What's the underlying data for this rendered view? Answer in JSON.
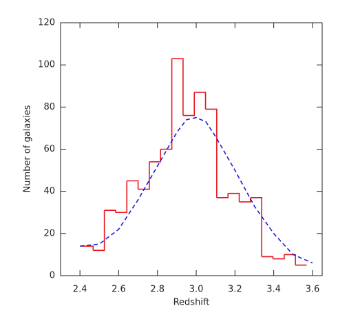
{
  "chart_data": {
    "type": "histogram",
    "xlabel": "Redshift",
    "ylabel": "Number of galaxies",
    "bins": [
      2.41,
      2.468,
      2.526,
      2.584,
      2.642,
      2.7,
      2.758,
      2.816,
      2.874,
      2.932,
      2.99,
      3.048,
      3.106,
      3.164,
      3.222,
      3.28,
      3.338,
      3.396,
      3.454,
      3.512,
      3.57
    ],
    "counts": [
      14,
      12,
      31,
      30,
      45,
      41,
      54,
      60,
      103,
      76,
      87,
      79,
      37,
      39,
      35,
      37,
      9,
      8,
      10,
      5
    ],
    "color": "#e8141c",
    "fit": {
      "type": "line",
      "color": "#1a1adf",
      "dashed": true,
      "x": [
        2.4,
        2.5,
        2.6,
        2.7,
        2.8,
        2.9,
        2.95,
        3.0,
        3.05,
        3.1,
        3.2,
        3.3,
        3.4,
        3.5,
        3.6
      ],
      "values": [
        14,
        15,
        22,
        36,
        52,
        68,
        74,
        75,
        73,
        66,
        50,
        33,
        20,
        10,
        6
      ]
    },
    "xlim": [
      2.3,
      3.65
    ],
    "ylim": [
      0,
      120
    ],
    "xticks": [
      2.4,
      2.6,
      2.8,
      {
        "value": 3,
        "label": "3.0"
      },
      3.2,
      3.4,
      3.6
    ],
    "yticks": [
      0,
      20,
      40,
      60,
      80,
      100,
      120
    ]
  }
}
